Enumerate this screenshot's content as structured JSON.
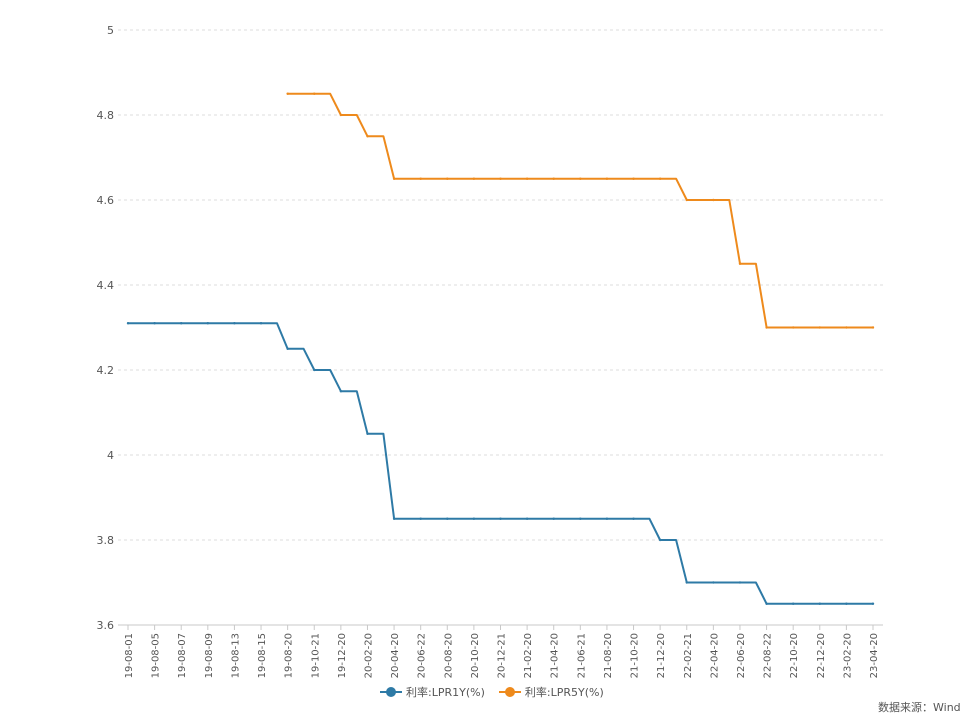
{
  "chart_data": {
    "type": "line",
    "title": "",
    "xlabel": "",
    "ylabel": "",
    "ylim": [
      3.6,
      5
    ],
    "yticks": [
      {
        "value": 5,
        "label": "5"
      },
      {
        "value": 4.8,
        "label": "4.8"
      },
      {
        "value": 4.6,
        "label": "4.6"
      },
      {
        "value": 4.4,
        "label": "4.4"
      },
      {
        "value": 4.2,
        "label": "4.2"
      },
      {
        "value": 4,
        "label": "4"
      },
      {
        "value": 3.8,
        "label": "3.8"
      },
      {
        "value": 3.6,
        "label": "3.6"
      }
    ],
    "grid": true,
    "legend_position": "bottom",
    "x": [
      "19-08-01",
      "19-08-05",
      "19-08-07",
      "19-08-09",
      "19-08-13",
      "19-08-15",
      "19-08-20",
      "19-10-21",
      "19-12-20",
      "20-02-20",
      "20-04-20",
      "20-06-22",
      "20-08-20",
      "20-10-20",
      "20-12-21",
      "21-02-20",
      "21-04-20",
      "21-06-21",
      "21-08-20",
      "21-10-20",
      "21-12-20",
      "22-02-21",
      "22-04-20",
      "22-06-20",
      "22-08-22",
      "22-10-20",
      "22-12-20",
      "23-02-20",
      "23-04-20"
    ],
    "series": [
      {
        "name": "利率:LPR1Y(%)",
        "color": "#2e7aa6",
        "values": [
          4.31,
          4.31,
          4.31,
          4.31,
          4.31,
          4.31,
          4.25,
          4.2,
          4.15,
          4.05,
          3.85,
          3.85,
          3.85,
          3.85,
          3.85,
          3.85,
          3.85,
          3.85,
          3.85,
          3.85,
          3.8,
          3.7,
          3.7,
          3.7,
          3.65,
          3.65,
          3.65,
          3.65,
          3.65
        ]
      },
      {
        "name": "利率:LPR5Y(%)",
        "color": "#ee8a1c",
        "values": [
          null,
          null,
          null,
          null,
          null,
          null,
          4.85,
          4.85,
          4.8,
          4.75,
          4.65,
          4.65,
          4.65,
          4.65,
          4.65,
          4.65,
          4.65,
          4.65,
          4.65,
          4.65,
          4.65,
          4.6,
          4.6,
          4.45,
          4.3,
          4.3,
          4.3,
          4.3,
          4.3
        ]
      }
    ]
  },
  "source_label": "数据来源：Wind"
}
